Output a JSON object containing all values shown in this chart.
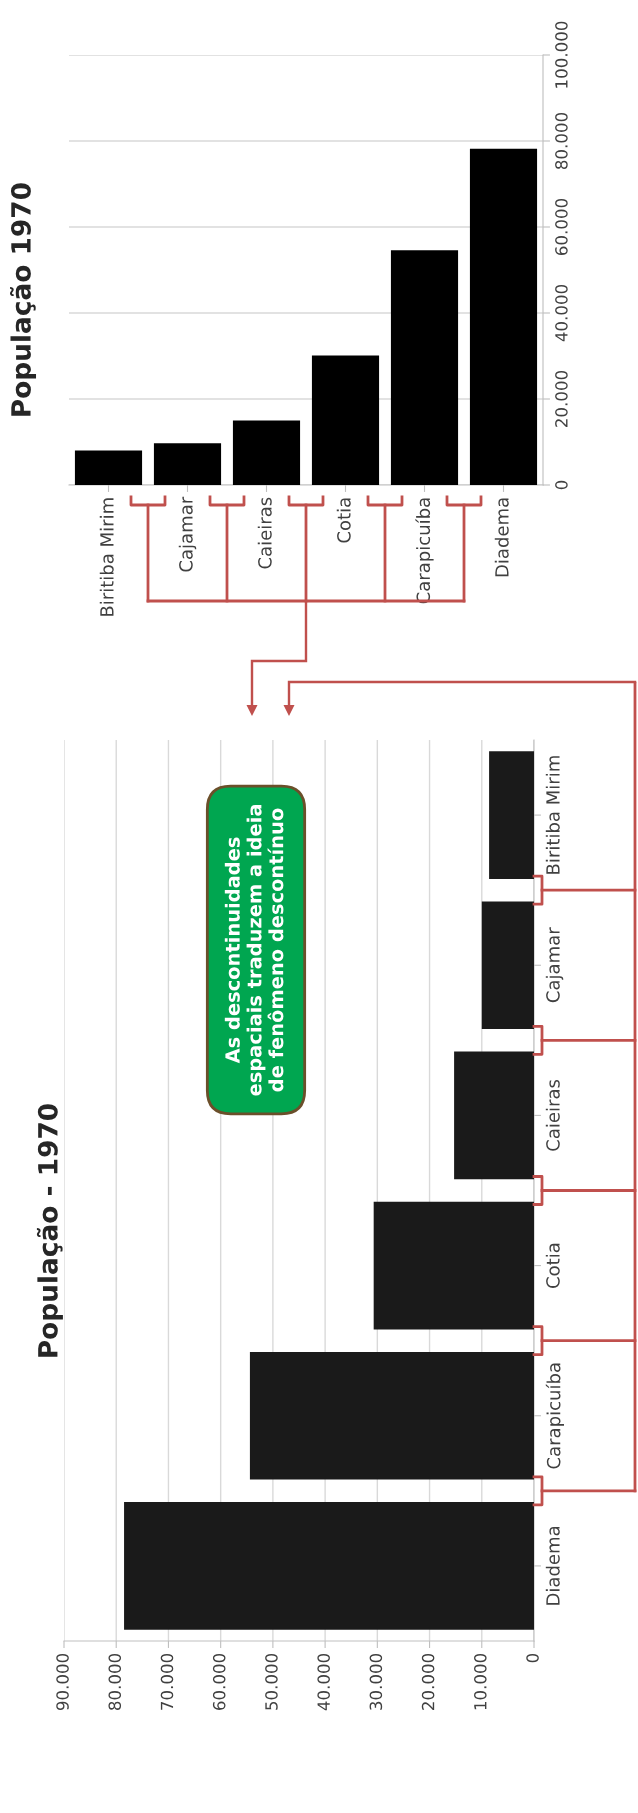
{
  "chart_data": [
    {
      "type": "bar",
      "title": "População 1970",
      "categories": [
        "Biritiba Mirim",
        "Cajamar",
        "Caieiras",
        "Cotia",
        "Carapicuíba",
        "Diadema"
      ],
      "values": [
        8000,
        9700,
        15000,
        30100,
        54600,
        78200
      ],
      "color": "#000000",
      "ylim": [
        0,
        100000
      ],
      "yticks": [
        0,
        {
          "value": 20000,
          "label": "20.000"
        },
        {
          "value": 40000,
          "label": "40.000"
        },
        {
          "value": 60000,
          "label": "60.000"
        },
        {
          "value": 80000,
          "label": "80.000"
        },
        {
          "value": 100000,
          "label": "100.000"
        }
      ],
      "grid": "y"
    },
    {
      "type": "bar",
      "orientation": "horizontal",
      "title": "População - 1970",
      "categories": [
        "Biritiba Mirim",
        "Cajamar",
        "Caieiras",
        "Cotia",
        "Carapicuíba",
        "Diadema"
      ],
      "values": [
        8600,
        10000,
        15300,
        30700,
        54400,
        78500
      ],
      "color": "#1a1a1a",
      "xlim": [
        90000,
        0
      ],
      "xticks": [
        0,
        {
          "value": 10000,
          "label": "10.000"
        },
        {
          "value": 20000,
          "label": "20.000"
        },
        {
          "value": 30000,
          "label": "30.000"
        },
        {
          "value": 40000,
          "label": "40.000"
        },
        {
          "value": 50000,
          "label": "50.000"
        },
        {
          "value": 60000,
          "label": "60.000"
        },
        {
          "value": 70000,
          "label": "70.000"
        },
        {
          "value": 80000,
          "label": "80.000"
        },
        {
          "value": 90000,
          "label": "90.000"
        }
      ],
      "grid": "x",
      "annotations": [
        "As descontinuidades\nespaciais traduzem a ideia\nde fenômeno descontínuo"
      ]
    }
  ]
}
